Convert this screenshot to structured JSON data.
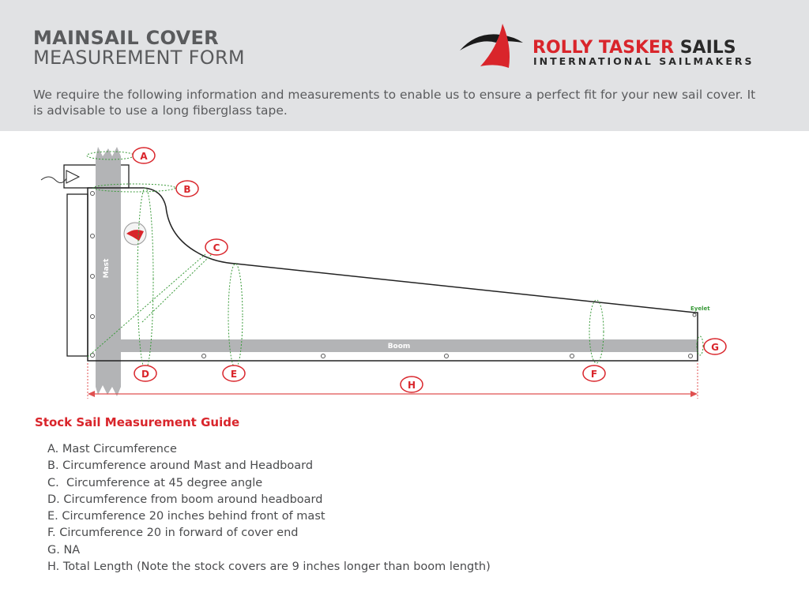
{
  "header": {
    "title_line1": "MAINSAIL COVER",
    "title_line2": "MEASUREMENT FORM",
    "intro": "We require the following information and measurements to enable us to ensure a perfect fit for your new sail cover. It is advisable to use a long fiberglass tape."
  },
  "logo": {
    "brand_red": "ROLLY TASKER",
    "brand_dark": "SAILS",
    "tagline": "INTERNATIONAL SAILMAKERS"
  },
  "diagram": {
    "mast_label": "Mast",
    "boom_label": "Boom",
    "eyelet_label": "Eyelet",
    "markers": [
      "A",
      "B",
      "C",
      "D",
      "E",
      "F",
      "G",
      "H"
    ]
  },
  "guide": {
    "title": "Stock Sail Measurement Guide",
    "items": [
      "A. Mast Circumference",
      "B. Circumference around Mast and Headboard",
      "C.  Circumference at 45 degree angle",
      "D. Circumference from boom around headboard",
      "E. Circumference 20 inches behind front of mast",
      "F. Circumference 20 in forward of cover end",
      "G. NA",
      "H. Total Length (Note the stock covers are 9 inches longer than boom length)"
    ]
  },
  "colors": {
    "accent_red": "#d9252b",
    "measure_green": "#3a9a3a",
    "header_bg": "#e1e2e4"
  }
}
